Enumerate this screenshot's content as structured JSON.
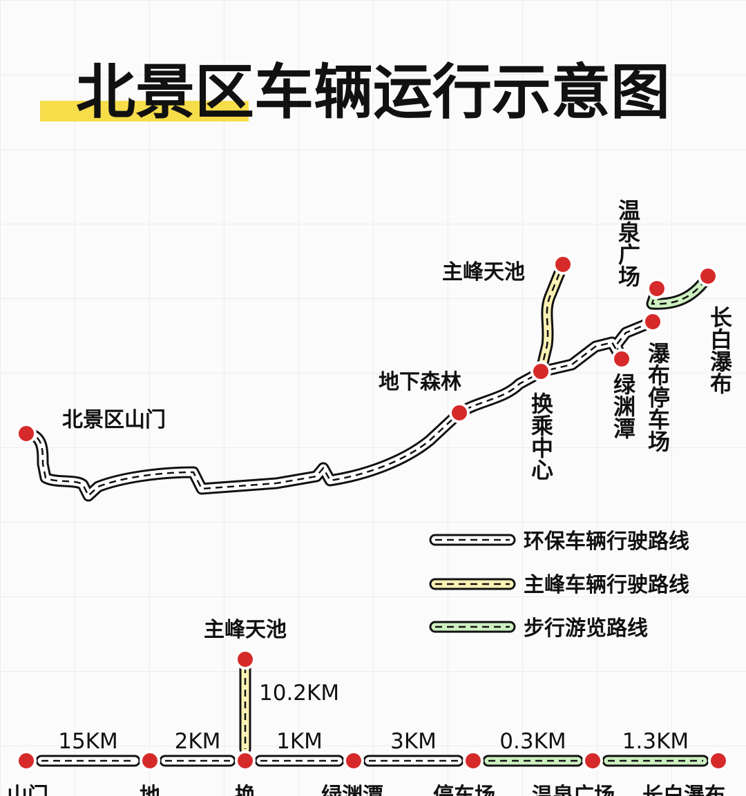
{
  "title": "北景区车辆运行示意图",
  "map": {
    "stations": [
      {
        "label": "北景区山门"
      },
      {
        "label": "地下森林"
      },
      {
        "label": "换乘中心"
      },
      {
        "label": "主峰天池"
      },
      {
        "label": "绿渊潭"
      },
      {
        "label": "瀑布停车场"
      },
      {
        "label": "温泉广场"
      },
      {
        "label": "长白瀑布"
      }
    ]
  },
  "legend": [
    {
      "label": "环保车辆行驶路线"
    },
    {
      "label": "主峰车辆行驶路线"
    },
    {
      "label": "步行游览路线"
    }
  ],
  "linear": {
    "branch": {
      "label": "主峰天池",
      "distance": "10.2KM"
    },
    "segments": [
      "15KM",
      "2KM",
      "1KM",
      "3KM",
      "0.3KM",
      "1.3KM"
    ],
    "stations": [
      "山门",
      "地",
      "换",
      "绿渊潭",
      "停车场",
      "温泉广场",
      "长白瀑布"
    ]
  }
}
